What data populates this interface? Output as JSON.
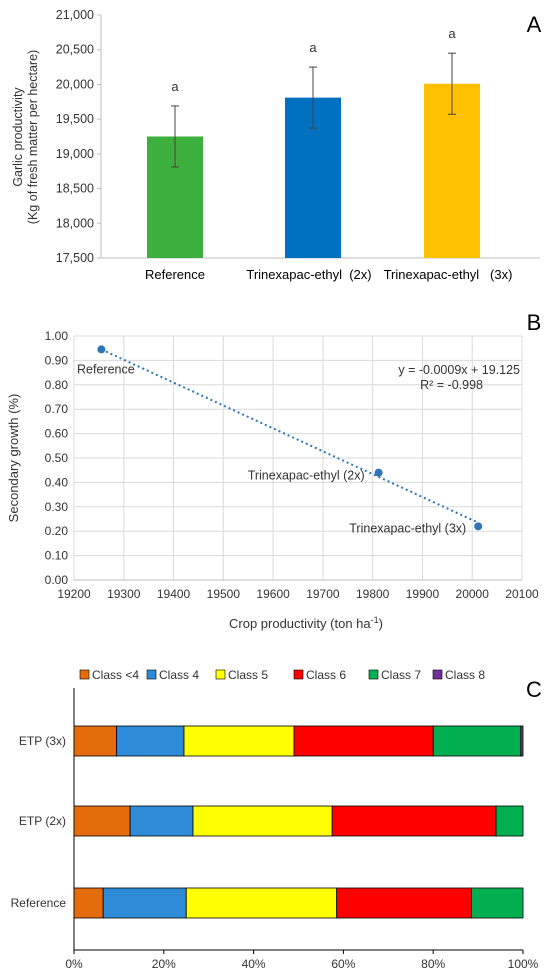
{
  "chart_data": [
    {
      "panel": "A",
      "type": "bar",
      "ylabel_lines": [
        "Garlic productivity",
        "(Kg of fresh matter per hectare)"
      ],
      "categories": [
        "Reference",
        "Trinexapac-ethyl  (2x)",
        "Trinexapac-ethyl   (3x)"
      ],
      "values": [
        19250,
        19810,
        20010
      ],
      "errors": [
        440,
        440,
        440
      ],
      "bar_labels": [
        "a",
        "a",
        "a"
      ],
      "colors": [
        "#3daf3d",
        "#0070c0",
        "#ffc000"
      ],
      "ylim": [
        17500,
        21000
      ],
      "yticks": [
        "17,500",
        "18,000",
        "18,500",
        "19,000",
        "19,500",
        "20,000",
        "20,500",
        "21,000"
      ],
      "grid": false
    },
    {
      "panel": "B",
      "type": "scatter",
      "xlabel": "Crop productivity (ton ha",
      "xlabel_sup": "-1",
      "xlabel_end": ")",
      "ylabel": "Secondary growth (%)",
      "points": [
        {
          "x": 19255,
          "y": 0.945,
          "label": "Reference"
        },
        {
          "x": 19812,
          "y": 0.44,
          "label": "Trinexapac-ethyl (2x)"
        },
        {
          "x": 20012,
          "y": 0.22,
          "label": "Trinexapac-ethyl (3x)"
        }
      ],
      "trendline": {
        "x0": 19255,
        "y0": 0.945,
        "x1": 20012,
        "y1": 0.235
      },
      "equation": "y = -0.0009x + 19.125",
      "r2": "R² = -0.998",
      "xlim": [
        19200,
        20100
      ],
      "ylim": [
        0,
        1.0
      ],
      "xticks": [
        "19200",
        "19300",
        "19400",
        "19500",
        "19600",
        "19700",
        "19800",
        "19900",
        "20000",
        "20100"
      ],
      "yticks": [
        "0.00",
        "0.10",
        "0.20",
        "0.30",
        "0.40",
        "0.50",
        "0.60",
        "0.70",
        "0.80",
        "0.90",
        "1.00"
      ],
      "color": "#2e75b6",
      "grid": true
    },
    {
      "panel": "C",
      "type": "bar",
      "orientation": "horizontal-stacked-100",
      "categories": [
        "ETP (3x)",
        "ETP (2x)",
        "Reference"
      ],
      "series": [
        {
          "name": "Class <4",
          "values": [
            9.5,
            12.5,
            6.5
          ],
          "color": "#e46c0a"
        },
        {
          "name": "Class 4",
          "values": [
            15,
            14,
            18.5
          ],
          "color": "#2e8bd8"
        },
        {
          "name": "Class 5",
          "values": [
            24.5,
            31,
            33.5
          ],
          "color": "#ffff00"
        },
        {
          "name": "Class 6",
          "values": [
            31,
            36.5,
            30
          ],
          "color": "#ff0000"
        },
        {
          "name": "Class 7",
          "values": [
            19.5,
            6,
            11.5
          ],
          "color": "#00b050"
        },
        {
          "name": "Class 8",
          "values": [
            0.5,
            0,
            0
          ],
          "color": "#7030a0"
        }
      ],
      "xticks": [
        "0%",
        "20%",
        "40%",
        "60%",
        "80%",
        "100%"
      ],
      "legend": "top",
      "grid": false
    }
  ],
  "panel_letters": [
    "A",
    "B",
    "C"
  ]
}
